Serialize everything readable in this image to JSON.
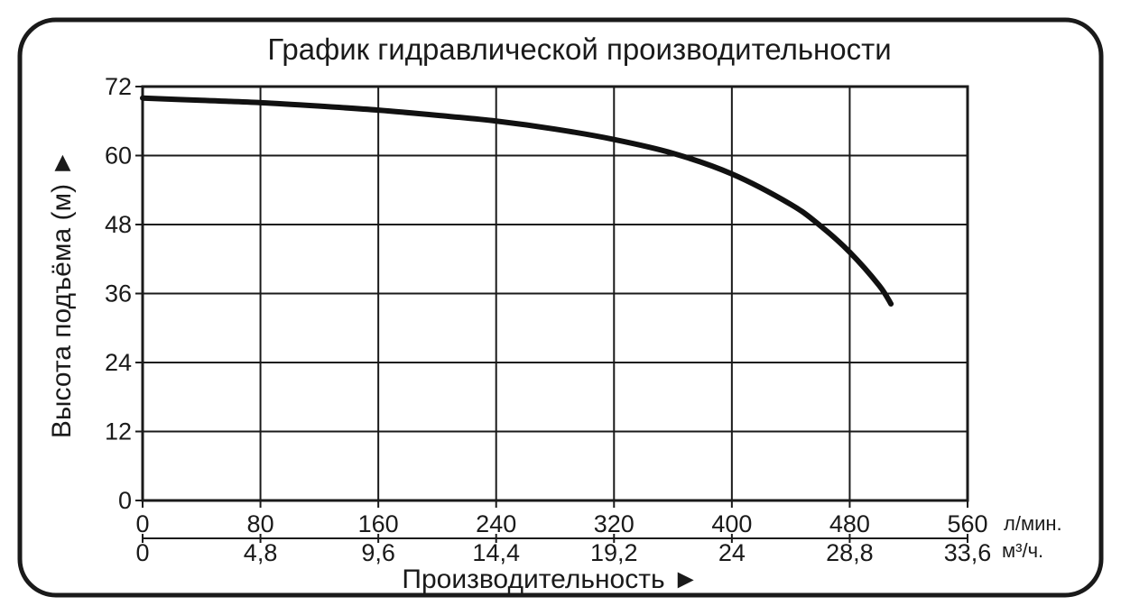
{
  "chart_data": {
    "type": "line",
    "title": "График гидравлической производительности",
    "xlabel": "Производительность ►",
    "ylabel": "Высота подъёма (м) ►",
    "xlim": [
      0,
      560
    ],
    "ylim": [
      0,
      72
    ],
    "grid": true,
    "x_ticks": [
      "0",
      "80",
      "160",
      "240",
      "320",
      "400",
      "480",
      "560"
    ],
    "x_unit": "л/мин.",
    "x2_ticks": [
      "0",
      "4,8",
      "9,6",
      "14,4",
      "19,2",
      "24",
      "28,8",
      "33,6"
    ],
    "x2_unit": "м³/ч.",
    "y_ticks": [
      "0",
      "12",
      "24",
      "36",
      "48",
      "60",
      "72"
    ],
    "series": [
      {
        "x": [
          0,
          40,
          80,
          120,
          160,
          200,
          240,
          280,
          320,
          360,
          400,
          440,
          460,
          480,
          500,
          508
        ],
        "y": [
          70,
          69.6,
          69.2,
          68.6,
          67.9,
          67.0,
          66.0,
          64.6,
          62.8,
          60.4,
          56.8,
          51.5,
          47.8,
          43.2,
          37.4,
          34.2
        ]
      }
    ],
    "colors": {
      "line": "#111111",
      "grid": "#1a1a1a",
      "frame": "#1a1a1a",
      "text": "#1a1a1a"
    }
  }
}
